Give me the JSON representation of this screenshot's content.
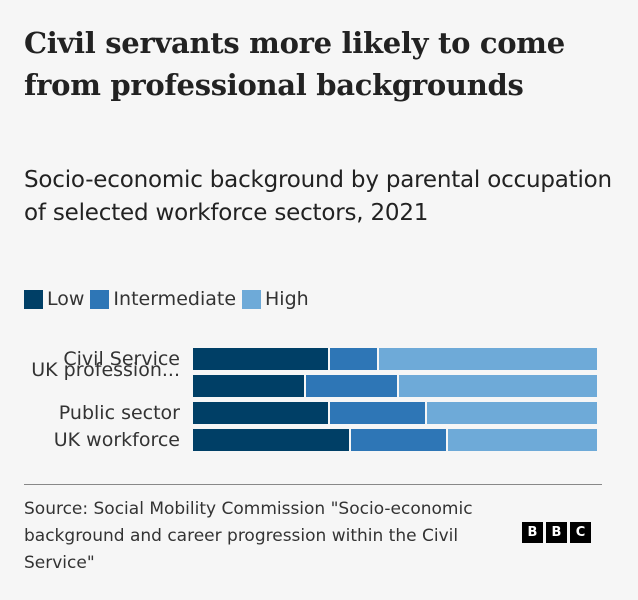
{
  "title": "Civil servants more likely to come from professional backgrounds",
  "subtitle": "Socio-economic background by parental occupation of selected workforce sectors, 2021",
  "legend": [
    {
      "label": "Low",
      "color": "#003f66"
    },
    {
      "label": "Intermediate",
      "color": "#2e76b6"
    },
    {
      "label": "High",
      "color": "#6eaad8"
    }
  ],
  "source": "Source: Social Mobility Commission \"Socio-economic background and career progression within the Civil Service\"",
  "logo": [
    "B",
    "B",
    "C"
  ],
  "chart_data": {
    "type": "bar",
    "orientation": "horizontal",
    "stacked": true,
    "normalized": true,
    "title": "Civil servants more likely to come from professional backgrounds",
    "subtitle": "Socio-economic background by parental occupation of selected workforce sectors, 2021",
    "categories": [
      "Civil Service",
      "UK profession...",
      "Public sector",
      "UK workforce"
    ],
    "series": [
      {
        "name": "Low",
        "color": "#003f66",
        "values": [
          34,
          28,
          34,
          39
        ]
      },
      {
        "name": "Intermediate",
        "color": "#2e76b6",
        "values": [
          12,
          23,
          24,
          24
        ]
      },
      {
        "name": "High",
        "color": "#6eaad8",
        "values": [
          54,
          49,
          42,
          37
        ]
      }
    ],
    "xlabel": "",
    "ylabel": "",
    "xlim": [
      0,
      100
    ],
    "grid": false,
    "legend_position": "top-left",
    "source": "Social Mobility Commission \"Socio-economic background and career progression within the Civil Service\""
  }
}
